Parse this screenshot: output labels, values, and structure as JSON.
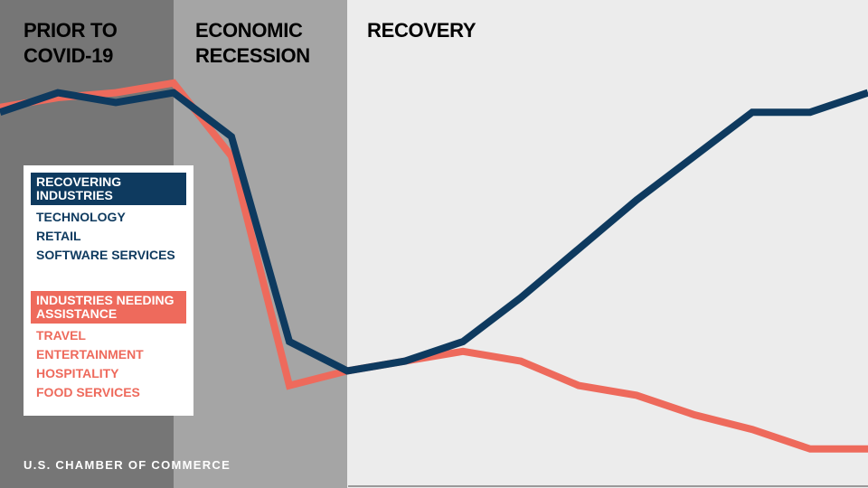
{
  "phases": [
    {
      "label": "PRIOR TO\nCOVID-19",
      "color": "#767676",
      "text_color": "#ffffff",
      "range": [
        0,
        3
      ]
    },
    {
      "label": "ECONOMIC\nRECESSION",
      "color": "#a5a5a5",
      "text_color": "#ffffff",
      "range": [
        3,
        6
      ]
    },
    {
      "label": "RECOVERY",
      "color": "#ececec",
      "text_color": "#1a1a1a",
      "range": [
        6,
        15
      ]
    }
  ],
  "legend": {
    "recovering": {
      "title": "RECOVERING\nINDUSTRIES",
      "items": [
        "TECHNOLOGY",
        "RETAIL",
        "SOFTWARE SERVICES"
      ],
      "color": "#0e3a5f"
    },
    "assistance": {
      "title": "INDUSTRIES NEEDING\nASSISTANCE",
      "items": [
        "TRAVEL",
        "ENTERTAINMENT",
        "HOSPITALITY",
        "FOOD SERVICES"
      ],
      "color": "#ee6a5c"
    }
  },
  "footer": "U.S. CHAMBER OF COMMERCE",
  "chart_data": {
    "type": "line",
    "x": [
      0,
      1,
      2,
      3,
      4,
      5,
      6,
      7,
      8,
      9,
      10,
      11,
      12,
      13,
      14,
      15
    ],
    "ylim": [
      0,
      100
    ],
    "grid": false,
    "legend_placement": "left",
    "series": [
      {
        "name": "RECOVERING INDUSTRIES",
        "color": "#0e3a5f",
        "values": [
          77,
          81,
          79,
          81,
          72,
          30,
          24,
          26,
          30,
          39,
          49,
          59,
          68,
          77,
          77,
          81
        ]
      },
      {
        "name": "INDUSTRIES NEEDING ASSISTANCE",
        "color": "#ee6a5c",
        "values": [
          78,
          80,
          81,
          83,
          68,
          21,
          24,
          26,
          28,
          26,
          21,
          19,
          15,
          12,
          8,
          8
        ]
      }
    ]
  }
}
